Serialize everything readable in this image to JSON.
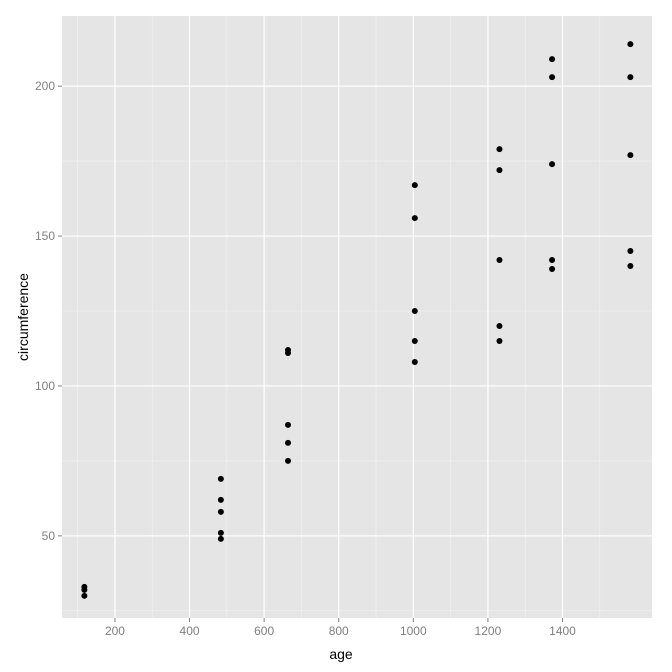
{
  "chart_data": {
    "type": "scatter",
    "title": "",
    "xlabel": "age",
    "ylabel": "circumference",
    "xlim": [
      58,
      1640
    ],
    "ylim": [
      22.6,
      223.4
    ],
    "x_ticks_major": [
      200,
      400,
      600,
      800,
      1000,
      1200,
      1400
    ],
    "x_ticks_minor": [
      100,
      300,
      500,
      700,
      900,
      1100,
      1300,
      1500
    ],
    "y_ticks_major": [
      50,
      100,
      150,
      200
    ],
    "y_ticks_minor": [
      25,
      75,
      125,
      175
    ],
    "grid": true,
    "panel_background": "#e5e5e5",
    "grid_color": "#ffffff",
    "point_color": "#000000",
    "points": [
      {
        "x": 118,
        "y": 30
      },
      {
        "x": 118,
        "y": 32
      },
      {
        "x": 118,
        "y": 33
      },
      {
        "x": 484,
        "y": 49
      },
      {
        "x": 484,
        "y": 51
      },
      {
        "x": 484,
        "y": 58
      },
      {
        "x": 484,
        "y": 62
      },
      {
        "x": 484,
        "y": 69
      },
      {
        "x": 664,
        "y": 75
      },
      {
        "x": 664,
        "y": 81
      },
      {
        "x": 664,
        "y": 87
      },
      {
        "x": 664,
        "y": 111
      },
      {
        "x": 664,
        "y": 112
      },
      {
        "x": 1004,
        "y": 108
      },
      {
        "x": 1004,
        "y": 115
      },
      {
        "x": 1004,
        "y": 125
      },
      {
        "x": 1004,
        "y": 156
      },
      {
        "x": 1004,
        "y": 167
      },
      {
        "x": 1231,
        "y": 115
      },
      {
        "x": 1231,
        "y": 120
      },
      {
        "x": 1231,
        "y": 142
      },
      {
        "x": 1231,
        "y": 172
      },
      {
        "x": 1231,
        "y": 179
      },
      {
        "x": 1372,
        "y": 139
      },
      {
        "x": 1372,
        "y": 142
      },
      {
        "x": 1372,
        "y": 174
      },
      {
        "x": 1372,
        "y": 203
      },
      {
        "x": 1372,
        "y": 209
      },
      {
        "x": 1582,
        "y": 140
      },
      {
        "x": 1582,
        "y": 145
      },
      {
        "x": 1582,
        "y": 177
      },
      {
        "x": 1582,
        "y": 203
      },
      {
        "x": 1582,
        "y": 214
      }
    ]
  }
}
